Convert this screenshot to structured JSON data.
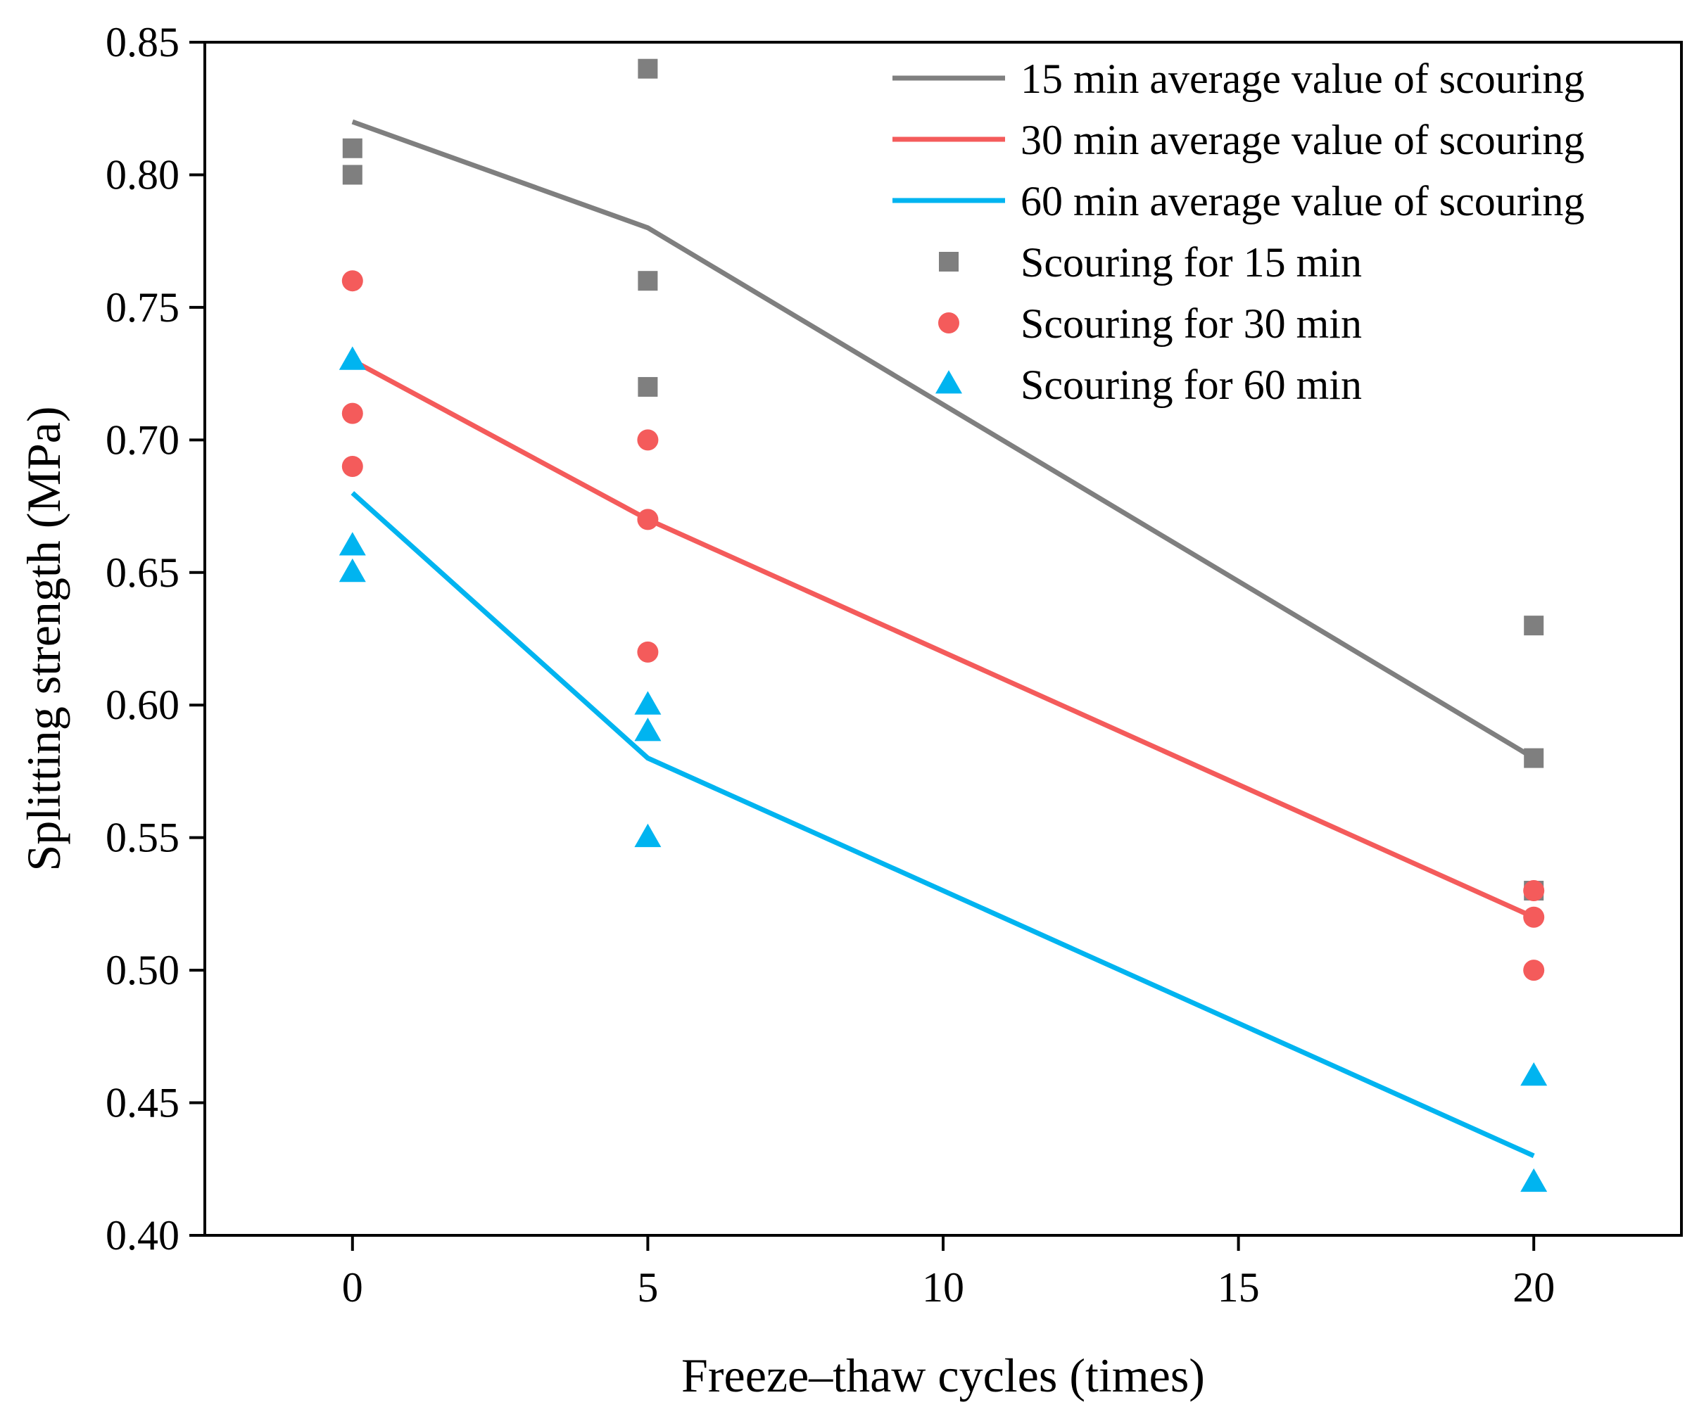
{
  "chart_data": {
    "type": "line",
    "title": "",
    "xlabel": "Freeze–thaw cycles (times)",
    "ylabel": "Splitting strength (MPa)",
    "xlim": [
      -2.5,
      22.5
    ],
    "ylim": [
      0.4,
      0.85
    ],
    "x_ticks": [
      0,
      5,
      10,
      15,
      20
    ],
    "x_tick_labels": [
      "0",
      "5",
      "10",
      "15",
      "20"
    ],
    "y_ticks": [
      0.4,
      0.45,
      0.5,
      0.55,
      0.6,
      0.65,
      0.7,
      0.75,
      0.8,
      0.85
    ],
    "y_tick_labels": [
      "0.40",
      "0.45",
      "0.50",
      "0.55",
      "0.60",
      "0.65",
      "0.70",
      "0.75",
      "0.80",
      "0.85"
    ],
    "grid": false,
    "legend_position": "top-right",
    "line_series": [
      {
        "name": "15 min average value of scouring",
        "color": "#7f7f7f",
        "x": [
          0,
          5,
          20
        ],
        "y": [
          0.82,
          0.78,
          0.58
        ]
      },
      {
        "name": "30 min average value of scouring",
        "color": "#f45b5b",
        "x": [
          0,
          5,
          20
        ],
        "y": [
          0.73,
          0.67,
          0.52
        ]
      },
      {
        "name": "60 min average value of scouring",
        "color": "#00b4f0",
        "x": [
          0,
          5,
          20
        ],
        "y": [
          0.68,
          0.58,
          0.43
        ]
      }
    ],
    "scatter_series": [
      {
        "name": "Scouring for 15 min",
        "marker": "square",
        "color": "#7f7f7f",
        "points": [
          [
            0,
            0.81
          ],
          [
            0,
            0.8
          ],
          [
            5,
            0.84
          ],
          [
            5,
            0.76
          ],
          [
            5,
            0.72
          ],
          [
            20,
            0.63
          ],
          [
            20,
            0.58
          ],
          [
            20,
            0.53
          ]
        ]
      },
      {
        "name": "Scouring for 30 min",
        "marker": "circle",
        "color": "#f45b5b",
        "points": [
          [
            0,
            0.76
          ],
          [
            0,
            0.71
          ],
          [
            0,
            0.69
          ],
          [
            5,
            0.7
          ],
          [
            5,
            0.67
          ],
          [
            5,
            0.62
          ],
          [
            20,
            0.53
          ],
          [
            20,
            0.52
          ],
          [
            20,
            0.5
          ]
        ]
      },
      {
        "name": "Scouring for 60 min",
        "marker": "triangle",
        "color": "#00b4f0",
        "points": [
          [
            0,
            0.73
          ],
          [
            0,
            0.66
          ],
          [
            0,
            0.65
          ],
          [
            5,
            0.6
          ],
          [
            5,
            0.59
          ],
          [
            5,
            0.55
          ],
          [
            20,
            0.46
          ],
          [
            20,
            0.42
          ]
        ]
      }
    ]
  }
}
